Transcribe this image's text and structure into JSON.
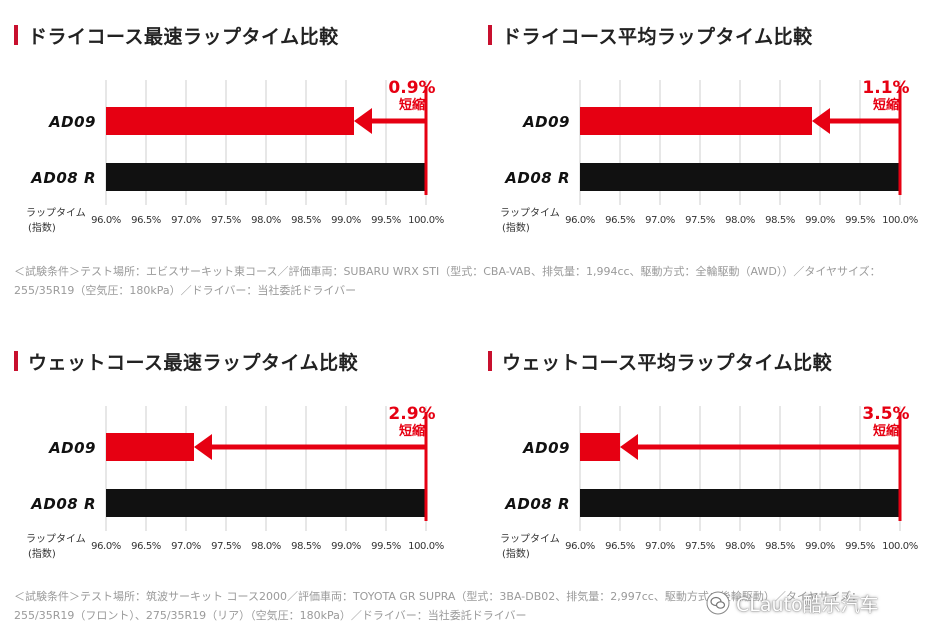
{
  "brand_color": "#e60012",
  "bar_dark_color": "#111111",
  "panels": [
    {
      "title": "ドライコース最速ラップタイム比較"
    },
    {
      "title": "ドライコース平均ラップタイム比較"
    },
    {
      "title": "ウェットコース最速ラップタイム比較"
    },
    {
      "title": "ウェットコース平均ラップタイム比較"
    }
  ],
  "conditions": [
    "＜試験条件＞テスト場所：エビスサーキット東コース／評価車両：SUBARU WRX STI（型式：CBA-VAB、排気量：1,994cc、駆動方式：全輪駆動（AWD））／タイヤサイズ：255/35R19（空気圧：180kPa）／ドライバー：当社委託ドライバー",
    "＜試験条件＞テスト場所：筑波サーキット コース2000／評価車両：TOYOTA GR SUPRA（型式：3BA-DB02、排気量：2,997cc、駆動方式：後輪駆動）／タイヤサイズ：255/35R19（フロント）、275/35R19（リア）（空気圧：180kPa）／ドライバー：当社委託ドライバー"
  ],
  "watermark": "CLauto酷乐汽车",
  "chart_data": [
    {
      "type": "bar",
      "orientation": "horizontal",
      "categories": [
        "AD09",
        "AD08 R"
      ],
      "values": [
        99.1,
        100.0
      ],
      "xlim": [
        96.0,
        100.0
      ],
      "xticks": [
        "96.0%",
        "96.5%",
        "97.0%",
        "97.5%",
        "98.0%",
        "98.5%",
        "99.0%",
        "99.5%",
        "100.0%"
      ],
      "xlabel": [
        "ラップタイム",
        "(指数)"
      ],
      "annotation": {
        "value": "0.9%",
        "text": "短縮"
      },
      "grid": true
    },
    {
      "type": "bar",
      "orientation": "horizontal",
      "categories": [
        "AD09",
        "AD08 R"
      ],
      "values": [
        98.9,
        100.0
      ],
      "xlim": [
        96.0,
        100.0
      ],
      "xticks": [
        "96.0%",
        "96.5%",
        "97.0%",
        "97.5%",
        "98.0%",
        "98.5%",
        "99.0%",
        "99.5%",
        "100.0%"
      ],
      "xlabel": [
        "ラップタイム",
        "(指数)"
      ],
      "annotation": {
        "value": "1.1%",
        "text": "短縮"
      },
      "grid": true
    },
    {
      "type": "bar",
      "orientation": "horizontal",
      "categories": [
        "AD09",
        "AD08 R"
      ],
      "values": [
        97.1,
        100.0
      ],
      "xlim": [
        96.0,
        100.0
      ],
      "xticks": [
        "96.0%",
        "96.5%",
        "97.0%",
        "97.5%",
        "98.0%",
        "98.5%",
        "99.0%",
        "99.5%",
        "100.0%"
      ],
      "xlabel": [
        "ラップタイム",
        "(指数)"
      ],
      "annotation": {
        "value": "2.9%",
        "text": "短縮"
      },
      "grid": true
    },
    {
      "type": "bar",
      "orientation": "horizontal",
      "categories": [
        "AD09",
        "AD08 R"
      ],
      "values": [
        96.5,
        100.0
      ],
      "xlim": [
        96.0,
        100.0
      ],
      "xticks": [
        "96.0%",
        "96.5%",
        "97.0%",
        "97.5%",
        "98.0%",
        "98.5%",
        "99.0%",
        "99.5%",
        "100.0%"
      ],
      "xlabel": [
        "ラップタイム",
        "(指数)"
      ],
      "annotation": {
        "value": "3.5%",
        "text": "短縮"
      },
      "grid": true
    }
  ]
}
